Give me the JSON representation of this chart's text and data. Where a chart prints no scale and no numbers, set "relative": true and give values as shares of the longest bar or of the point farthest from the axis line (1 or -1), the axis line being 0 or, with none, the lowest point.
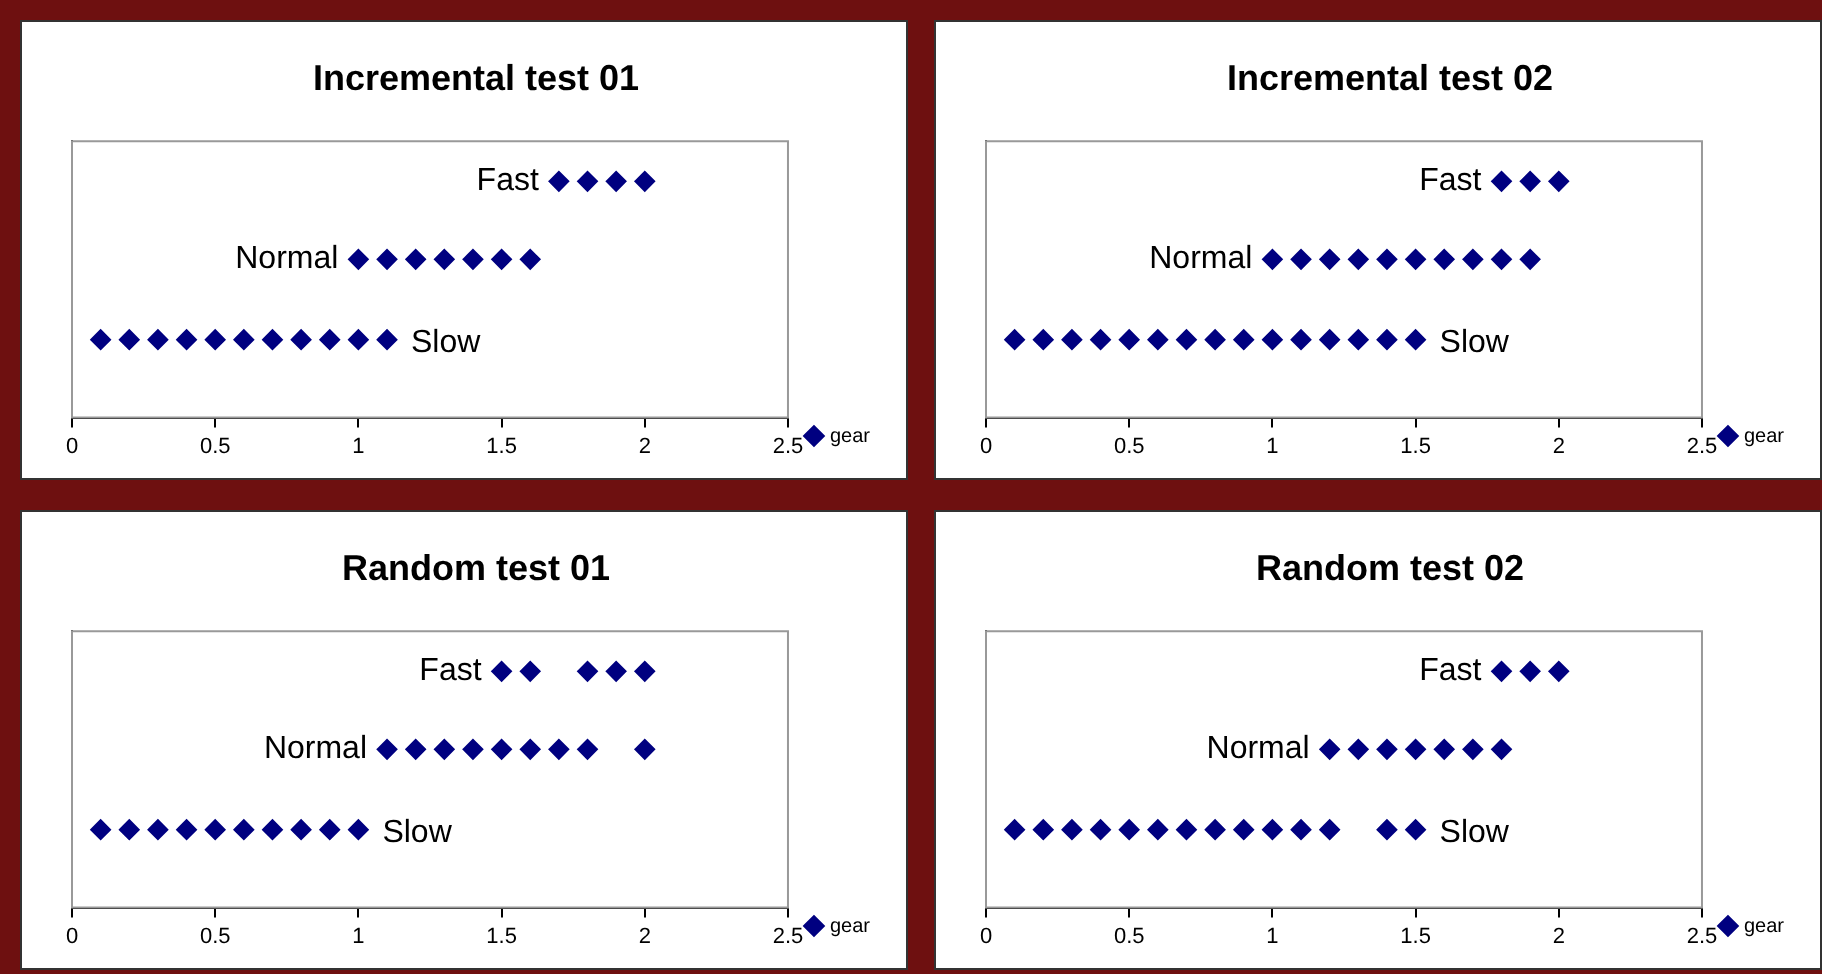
{
  "chart_data": [
    {
      "type": "scatter",
      "title": "Incremental test 01",
      "legend": "right",
      "marker": "diamond",
      "tick_labels": "x",
      "relative": true,
      "xlim": [
        0,
        2.5
      ],
      "xticks": [
        0,
        0.5,
        1,
        1.5,
        2,
        2.5
      ],
      "annotations": [
        "Fast",
        "Normal",
        "Slow"
      ],
      "series": [
        {
          "name": "gear",
          "color": "#000080",
          "x": [
            0.1,
            0.2,
            0.3,
            0.4,
            0.5,
            0.6,
            0.7,
            0.8,
            0.9,
            1.0,
            1.1,
            1.0,
            1.1,
            1.2,
            1.3,
            1.4,
            1.5,
            1.6,
            1.7,
            1.8,
            1.9,
            2.0
          ],
          "values": [
            0.33,
            0.33,
            0.33,
            0.33,
            0.33,
            0.33,
            0.33,
            0.33,
            0.33,
            0.33,
            0.33,
            0.67,
            0.67,
            0.67,
            0.67,
            0.67,
            0.67,
            0.67,
            1,
            1,
            1,
            1
          ]
        }
      ]
    },
    {
      "type": "scatter",
      "title": "Incremental test 02",
      "legend": "right",
      "marker": "diamond",
      "tick_labels": "x",
      "relative": true,
      "xlim": [
        0,
        2.5
      ],
      "xticks": [
        0,
        0.5,
        1,
        1.5,
        2,
        2.5
      ],
      "annotations": [
        "Fast",
        "Normal",
        "Slow"
      ],
      "series": [
        {
          "name": "gear",
          "color": "#000080",
          "x": [
            0.1,
            0.2,
            0.3,
            0.4,
            0.5,
            0.6,
            0.7,
            0.8,
            0.9,
            1.0,
            1.1,
            1.2,
            1.3,
            1.4,
            1.5,
            1.0,
            1.1,
            1.2,
            1.3,
            1.4,
            1.5,
            1.6,
            1.7,
            1.8,
            1.9,
            1.8,
            1.9,
            2.0
          ],
          "values": [
            0.33,
            0.33,
            0.33,
            0.33,
            0.33,
            0.33,
            0.33,
            0.33,
            0.33,
            0.33,
            0.33,
            0.33,
            0.33,
            0.33,
            0.33,
            0.67,
            0.67,
            0.67,
            0.67,
            0.67,
            0.67,
            0.67,
            0.67,
            0.67,
            0.67,
            1,
            1,
            1
          ]
        }
      ]
    },
    {
      "type": "scatter",
      "title": "Random test 01",
      "legend": "right",
      "marker": "diamond",
      "tick_labels": "x",
      "relative": true,
      "xlim": [
        0,
        2.5
      ],
      "xticks": [
        0,
        0.5,
        1,
        1.5,
        2,
        2.5
      ],
      "annotations": [
        "Fast",
        "Normal",
        "Slow"
      ],
      "series": [
        {
          "name": "gear",
          "color": "#000080",
          "x": [
            0.1,
            0.2,
            0.3,
            0.4,
            0.5,
            0.6,
            0.7,
            0.8,
            0.9,
            1.0,
            1.1,
            1.2,
            1.3,
            1.4,
            1.5,
            1.6,
            1.7,
            1.8,
            2.0,
            1.5,
            1.6,
            1.8,
            1.9,
            2.0
          ],
          "values": [
            0.33,
            0.33,
            0.33,
            0.33,
            0.33,
            0.33,
            0.33,
            0.33,
            0.33,
            0.33,
            0.67,
            0.67,
            0.67,
            0.67,
            0.67,
            0.67,
            0.67,
            0.67,
            0.67,
            1,
            1,
            1,
            1,
            1
          ]
        }
      ]
    },
    {
      "type": "scatter",
      "title": "Random test 02",
      "legend": "right",
      "marker": "diamond",
      "tick_labels": "x",
      "relative": true,
      "xlim": [
        0,
        2.5
      ],
      "xticks": [
        0,
        0.5,
        1,
        1.5,
        2,
        2.5
      ],
      "annotations": [
        "Fast",
        "Normal",
        "Slow"
      ],
      "series": [
        {
          "name": "gear",
          "color": "#000080",
          "x": [
            0.1,
            0.2,
            0.3,
            0.4,
            0.5,
            0.6,
            0.7,
            0.8,
            0.9,
            1.0,
            1.1,
            1.2,
            1.4,
            1.5,
            1.2,
            1.3,
            1.4,
            1.5,
            1.6,
            1.7,
            1.8,
            1.8,
            1.9,
            2.0
          ],
          "values": [
            0.33,
            0.33,
            0.33,
            0.33,
            0.33,
            0.33,
            0.33,
            0.33,
            0.33,
            0.33,
            0.33,
            0.33,
            0.33,
            0.33,
            0.67,
            0.67,
            0.67,
            0.67,
            0.67,
            0.67,
            0.67,
            1,
            1,
            1
          ]
        }
      ]
    }
  ]
}
